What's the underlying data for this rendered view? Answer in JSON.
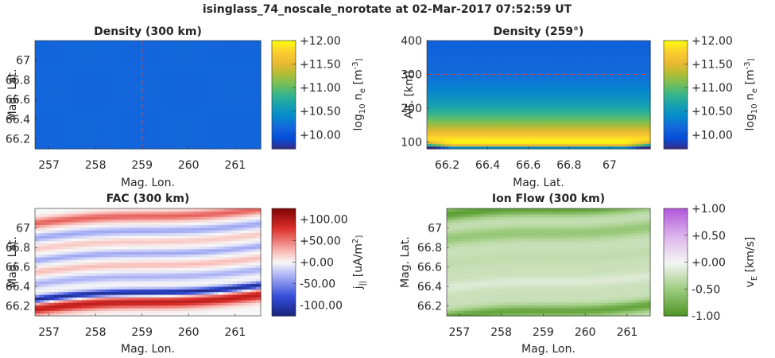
{
  "figure": {
    "title": "isinglass_74_noscale_norotate at 02-Mar-2017 07:52:59 UT"
  },
  "chart_data": [
    {
      "type": "heatmap",
      "title": "Density (300 km)",
      "xlabel": "Mag. Lon.",
      "ylabel": "Mag. Lat.",
      "xlim": [
        256.7,
        261.55
      ],
      "ylim": [
        66.1,
        67.2
      ],
      "xticks": [
        257,
        258,
        259,
        260,
        261
      ],
      "xticklabels": [
        "257",
        "258",
        "259",
        "260",
        "261"
      ],
      "yticks": [
        66.2,
        66.4,
        66.6,
        66.8,
        67.0
      ],
      "yticklabels": [
        "66.2",
        "66.4",
        "66.6",
        "66.8",
        "67"
      ],
      "colorbar": {
        "label": "log10 ne [m^-3]",
        "label_main": "log",
        "label_sub": "10",
        "label_var": "n",
        "label_varsub": "e",
        "label_unit": "[m",
        "label_exp": "-3",
        "label_close": "]",
        "colormap": "parula",
        "clim": [
          9.7,
          12.0
        ],
        "ticks": [
          10.0,
          10.5,
          11.0,
          11.5,
          12.0
        ],
        "ticklabels": [
          "+10.00",
          "+10.50",
          "+11.00",
          "+11.50",
          "+12.00"
        ]
      },
      "field": "uniform",
      "field_value": 10.15,
      "reference_line": {
        "orientation": "vertical",
        "value": 259.0,
        "style": "dashed",
        "color": "#d24a4a"
      }
    },
    {
      "type": "heatmap",
      "title": "Density (259°)",
      "xlabel": "Mag. Lat.",
      "ylabel": "Alt. [km]",
      "xlim": [
        66.1,
        67.2
      ],
      "ylim": [
        80,
        400
      ],
      "xticks": [
        66.2,
        66.4,
        66.6,
        66.8,
        67.0
      ],
      "xticklabels": [
        "66.2",
        "66.4",
        "66.6",
        "66.8",
        "67"
      ],
      "yticks": [
        100,
        200,
        300,
        400
      ],
      "yticklabels": [
        "100",
        "200",
        "300",
        "400"
      ],
      "colorbar": {
        "label": "log10 ne [m^-3]",
        "label_main": "log",
        "label_sub": "10",
        "label_var": "n",
        "label_varsub": "e",
        "label_unit": "[m",
        "label_exp": "-3",
        "label_close": "]",
        "colormap": "parula",
        "clim": [
          9.7,
          12.0
        ],
        "ticks": [
          10.0,
          10.5,
          11.0,
          11.5,
          12.0
        ],
        "ticklabels": [
          "+10.00",
          "+10.50",
          "+11.00",
          "+11.50",
          "+12.00"
        ]
      },
      "field": "altitude_profile",
      "profile": {
        "altitudes": [
          80,
          95,
          110,
          130,
          150,
          175,
          200,
          230,
          260,
          300,
          340,
          400
        ],
        "values": [
          9.9,
          12.0,
          11.9,
          11.55,
          11.25,
          10.95,
          10.7,
          10.5,
          10.35,
          10.2,
          10.15,
          10.1
        ]
      },
      "reference_line": {
        "orientation": "horizontal",
        "value": 300,
        "style": "dashed",
        "color": "#d24a4a"
      }
    },
    {
      "type": "heatmap",
      "title": "FAC (300 km)",
      "xlabel": "Mag. Lon.",
      "ylabel": "Mag. Lat.",
      "xlim": [
        256.7,
        261.55
      ],
      "ylim": [
        66.1,
        67.2
      ],
      "xticks": [
        257,
        258,
        259,
        260,
        261
      ],
      "xticklabels": [
        "257",
        "258",
        "259",
        "260",
        "261"
      ],
      "yticks": [
        66.2,
        66.4,
        66.6,
        66.8,
        67.0
      ],
      "yticklabels": [
        "66.2",
        "66.4",
        "66.6",
        "66.8",
        "67"
      ],
      "colorbar": {
        "label": "j|| [uA/m^2]",
        "label_main": "j",
        "label_sub": "||",
        "label_unit": "[uA/m",
        "label_exp": "2",
        "label_close": "]",
        "colormap": "red-white-blue",
        "clim": [
          -125,
          125
        ],
        "ticks": [
          -100,
          -50,
          0,
          50,
          100
        ],
        "ticklabels": [
          "-100.00",
          "-50.00",
          "+0.00",
          "+50.00",
          "+100.00"
        ]
      },
      "field": "latitudinal_bands",
      "bands": [
        {
          "lat": 66.24,
          "value": 95,
          "width": 0.06
        },
        {
          "lat": 66.34,
          "value": -120,
          "width": 0.035
        },
        {
          "lat": 66.5,
          "value": -30,
          "width": 0.04
        },
        {
          "lat": 66.62,
          "value": 25,
          "width": 0.035
        },
        {
          "lat": 66.74,
          "value": -35,
          "width": 0.035
        },
        {
          "lat": 66.86,
          "value": 20,
          "width": 0.035
        },
        {
          "lat": 66.97,
          "value": -35,
          "width": 0.04
        },
        {
          "lat": 67.12,
          "value": 60,
          "width": 0.05
        }
      ],
      "band_tilt_per_deg": 0.03
    },
    {
      "type": "heatmap",
      "title": "Ion Flow (300 km)",
      "xlabel": "Mag. Lon.",
      "ylabel": "Mag. Lat.",
      "xlim": [
        256.7,
        261.55
      ],
      "ylim": [
        66.1,
        67.2
      ],
      "xticks": [
        257,
        258,
        259,
        260,
        261
      ],
      "xticklabels": [
        "257",
        "258",
        "259",
        "260",
        "261"
      ],
      "yticks": [
        66.2,
        66.4,
        66.6,
        66.8,
        67.0
      ],
      "yticklabels": [
        "66.2",
        "66.4",
        "66.6",
        "66.8",
        "67"
      ],
      "colorbar": {
        "label": "vE [km/s]",
        "label_main": "v",
        "label_sub": "E",
        "label_unit": "[km/s]",
        "colormap": "green-white-purple",
        "clim": [
          -1.0,
          1.0
        ],
        "ticks": [
          -1.0,
          -0.5,
          0.0,
          0.5,
          1.0
        ],
        "ticklabels": [
          "-1.00",
          "-0.50",
          "+0.00",
          "+0.50",
          "+1.00"
        ]
      },
      "field": "latitudinal_bands",
      "bands": [
        {
          "lat": 66.15,
          "value": -0.6,
          "width": 0.06
        },
        {
          "lat": 66.45,
          "value": 0.12,
          "width": 0.05
        },
        {
          "lat": 66.7,
          "value": -0.05,
          "width": 0.06
        },
        {
          "lat": 66.95,
          "value": -0.3,
          "width": 0.07
        },
        {
          "lat": 67.2,
          "value": -0.65,
          "width": 0.07
        }
      ],
      "band_base": -0.25,
      "band_tilt_per_deg": 0.025
    }
  ]
}
